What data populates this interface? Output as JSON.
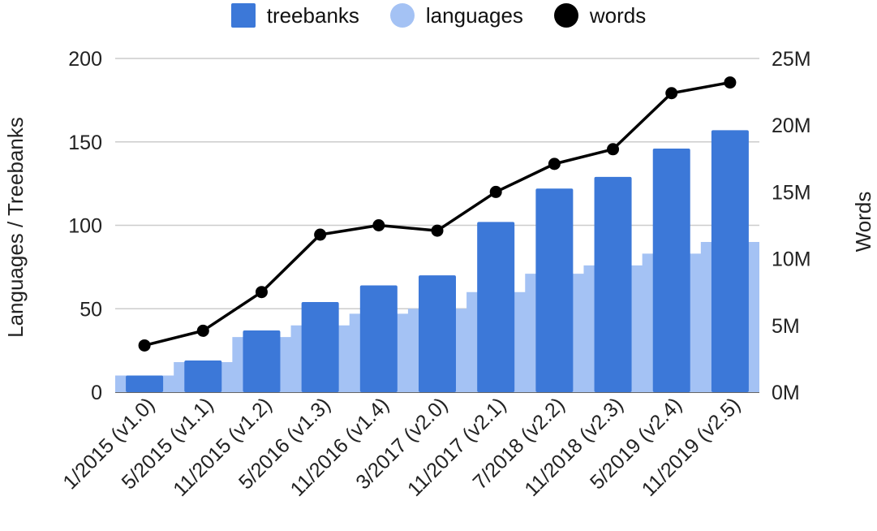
{
  "chart_data": {
    "type": "bar",
    "title": "",
    "xlabel": "",
    "ylabel": "Languages / Treebanks",
    "y2label": "Words",
    "ylim": [
      0,
      200
    ],
    "y2lim": [
      0,
      25000000
    ],
    "yticks": [
      "0",
      "50",
      "100",
      "150",
      "200"
    ],
    "y2ticks": [
      "0M",
      "5M",
      "10M",
      "15M",
      "20M",
      "25M"
    ],
    "grid": true,
    "legend_position": "top",
    "categories": [
      "1/2015 (v1.0)",
      "5/2015 (v1.1)",
      "11/2015 (v1.2)",
      "5/2016 (v1.3)",
      "11/2016 (v1.4)",
      "3/2017 (v2.0)",
      "11/2017 (v2.1)",
      "7/2018 (v2.2)",
      "11/2018 (v2.3)",
      "5/2019 (v2.4)",
      "11/2019 (v2.5)"
    ],
    "series": [
      {
        "name": "treebanks",
        "type": "bar",
        "axis": "left",
        "color": "#3c78d8",
        "values": [
          10,
          19,
          37,
          54,
          64,
          70,
          102,
          122,
          129,
          146,
          157
        ]
      },
      {
        "name": "languages",
        "type": "step-area",
        "axis": "left",
        "color": "#a4c2f4",
        "values": [
          10,
          18,
          33,
          40,
          47,
          50,
          60,
          71,
          76,
          83,
          90
        ]
      },
      {
        "name": "words",
        "type": "line",
        "axis": "right",
        "color": "#000000",
        "values": [
          3500000,
          4600000,
          7500000,
          11800000,
          12500000,
          12100000,
          15000000,
          17100000,
          18200000,
          22400000,
          23200000
        ]
      }
    ]
  }
}
